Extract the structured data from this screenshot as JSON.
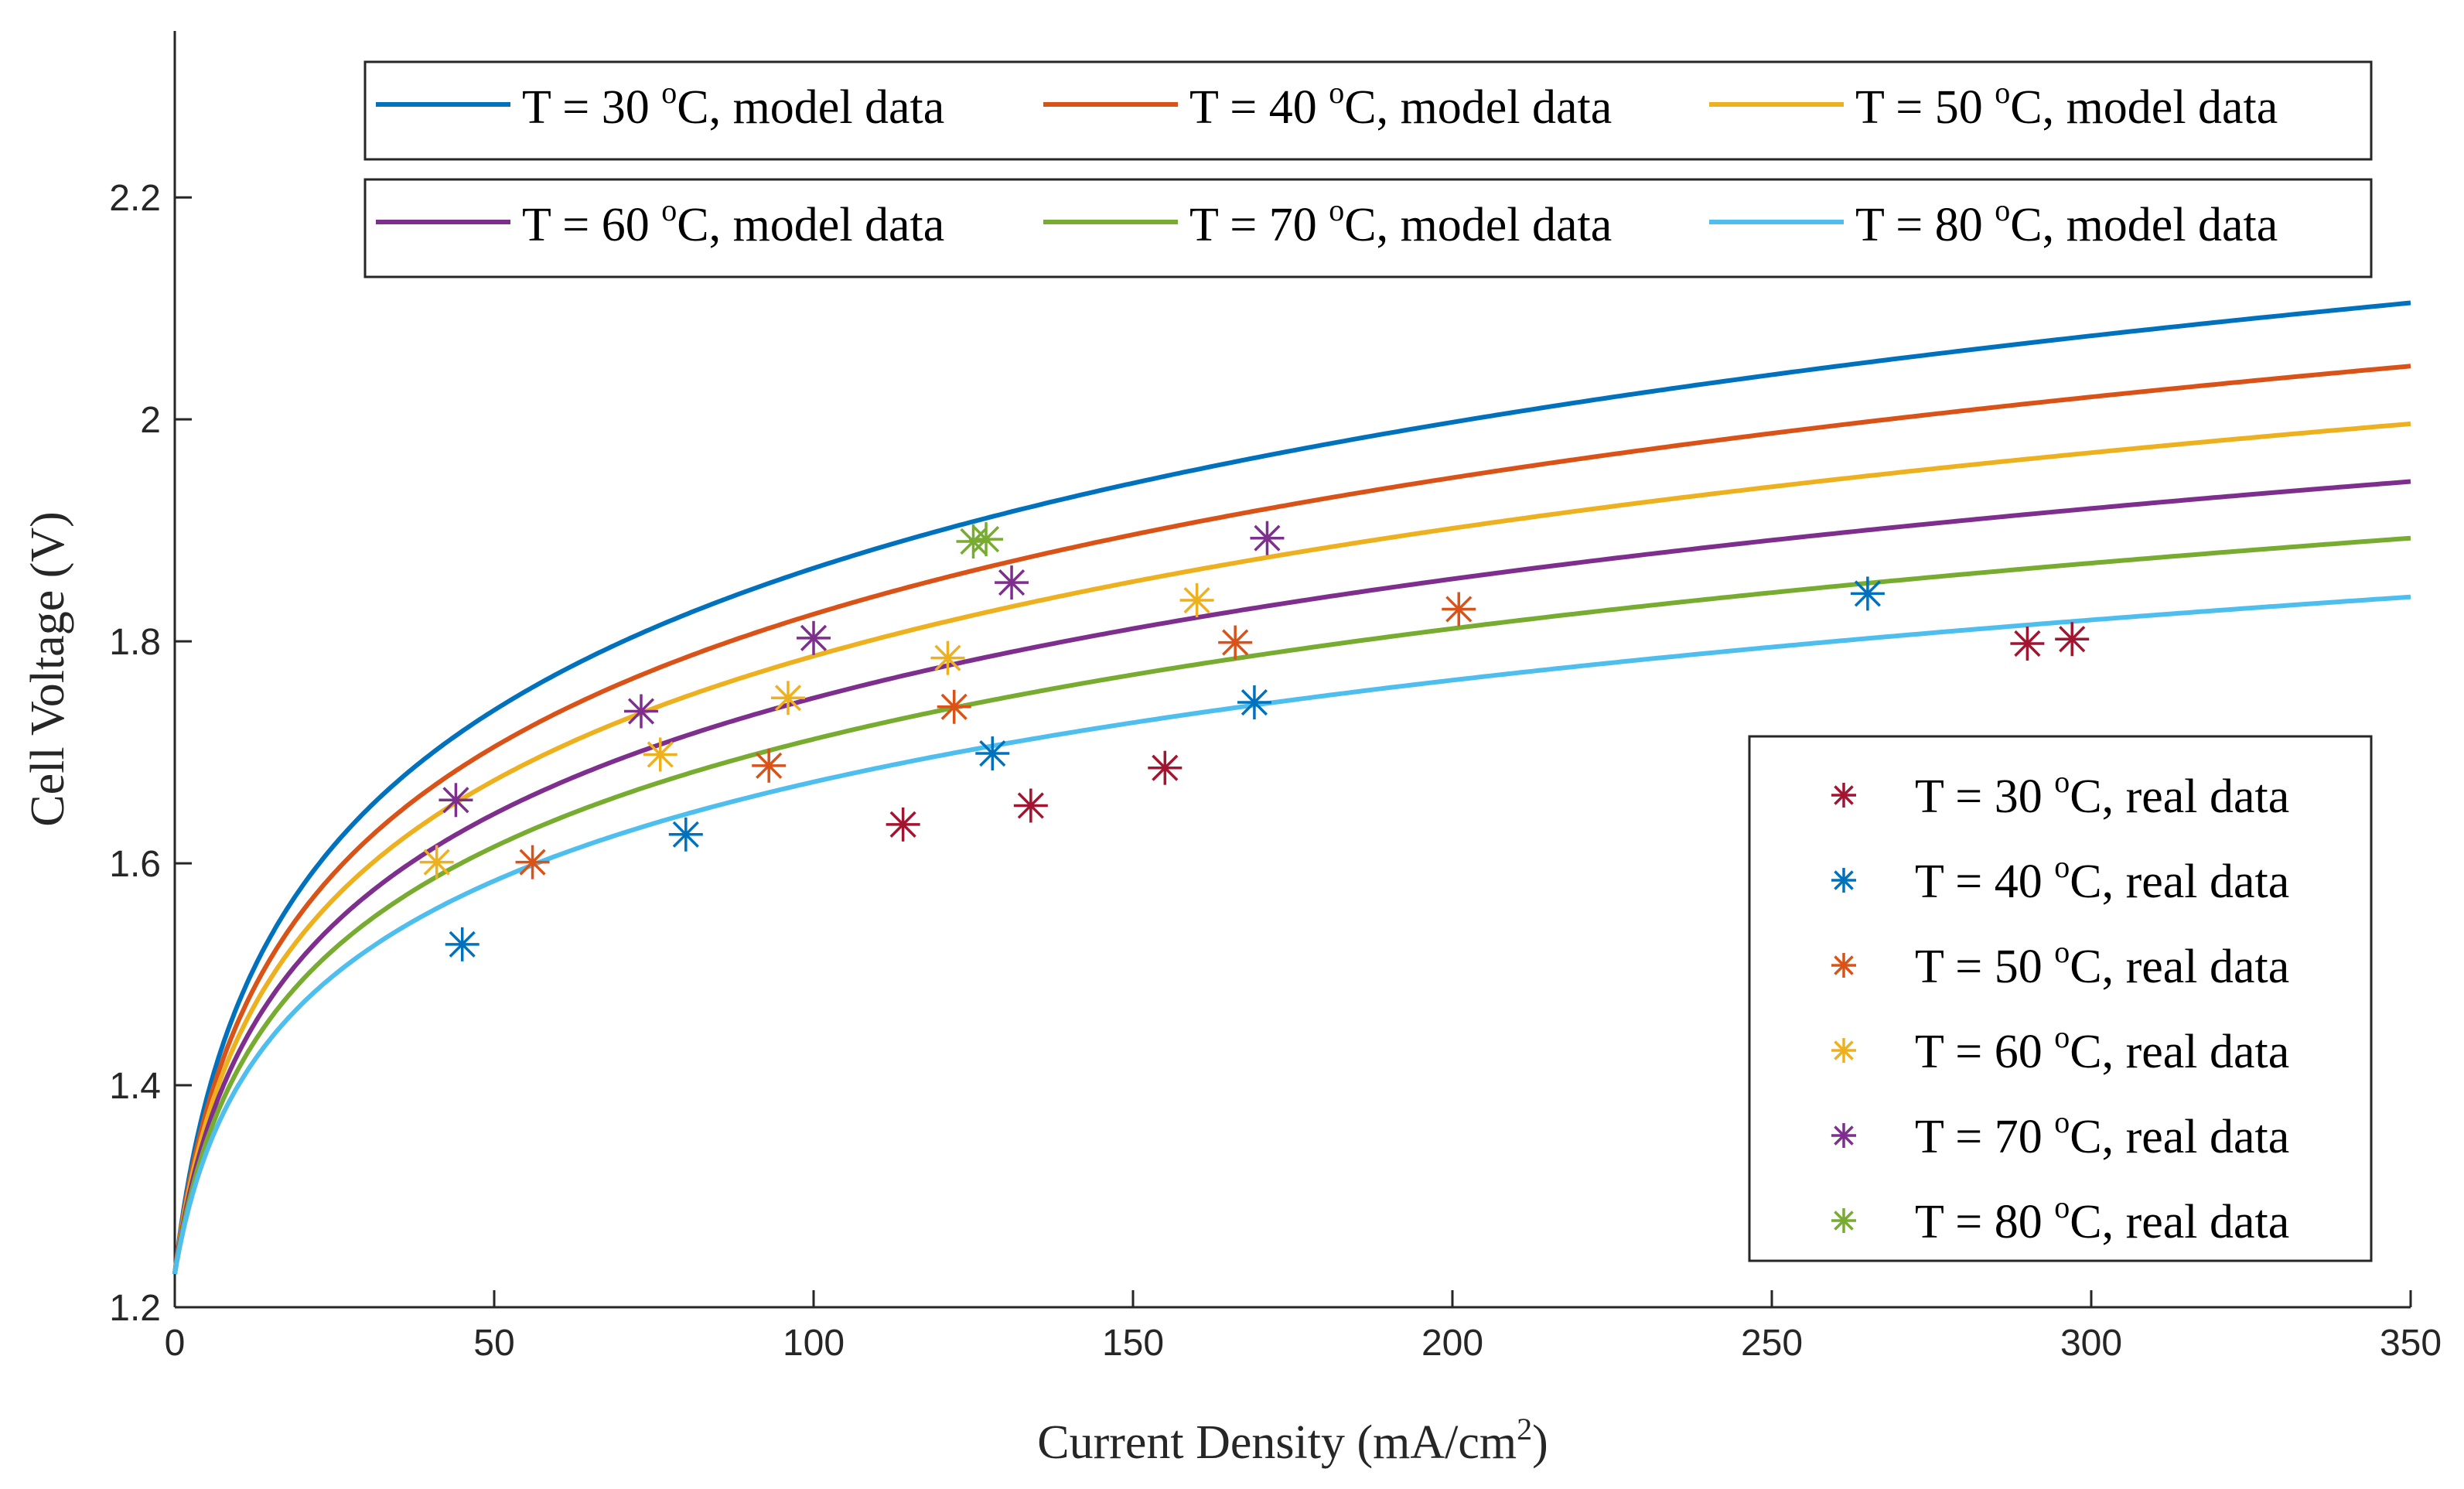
{
  "chart_data": {
    "type": "line",
    "title": "",
    "xlabel": "Current Density (mA/cm",
    "xlabel_sup": "2",
    "xlabel_tail": ")",
    "ylabel": "Cell Voltage (V)",
    "xlim": [
      0,
      350
    ],
    "ylim": [
      1.2,
      2.35
    ],
    "xticks": [
      0,
      50,
      100,
      150,
      200,
      250,
      300,
      350
    ],
    "xtick_labels": [
      "0",
      "50",
      "100",
      "150",
      "200",
      "250",
      "300",
      "350"
    ],
    "yticks": [
      1.2,
      1.4,
      1.6,
      1.8,
      2.0,
      2.2
    ],
    "ytick_labels": [
      "1.2",
      "1.4",
      "1.6",
      "1.8",
      "2",
      "2.2"
    ],
    "grid": false,
    "model_series": [
      {
        "name": "T = 30 oC, model data",
        "label_pre": "T = 30 ",
        "label_sup": "o",
        "label_post": "C, model data",
        "color": "#0072BD",
        "v0": 1.23,
        "v350": 2.105
      },
      {
        "name": "T = 40 oC, model data",
        "label_pre": "T = 40 ",
        "label_sup": "o",
        "label_post": "C, model data",
        "color": "#D95319",
        "v0": 1.23,
        "v350": 2.048
      },
      {
        "name": "T = 50 oC, model data",
        "label_pre": "T = 50 ",
        "label_sup": "o",
        "label_post": "C, model data",
        "color": "#EDB120",
        "v0": 1.23,
        "v350": 1.996
      },
      {
        "name": "T = 60 oC, model data",
        "label_pre": "T = 60 ",
        "label_sup": "o",
        "label_post": "C, model data",
        "color": "#7E2F8E",
        "v0": 1.23,
        "v350": 1.944
      },
      {
        "name": "T = 70 oC, model data",
        "label_pre": "T = 70 ",
        "label_sup": "o",
        "label_post": "C, model data",
        "color": "#77AC30",
        "v0": 1.23,
        "v350": 1.893
      },
      {
        "name": "T = 80 oC, model data",
        "label_pre": "T = 80 ",
        "label_sup": "o",
        "label_post": "C, model data",
        "color": "#4DBEEE",
        "v0": 1.23,
        "v350": 1.84
      }
    ],
    "real_series": [
      {
        "name": "T = 30 oC, real data",
        "label_pre": "T = 30 ",
        "label_sup": "o",
        "label_post": "C, real data",
        "color": "#A2142F",
        "points": [
          [
            114,
            1.635
          ],
          [
            134,
            1.652
          ],
          [
            155,
            1.686
          ],
          [
            290,
            1.798
          ],
          [
            297,
            1.802
          ]
        ]
      },
      {
        "name": "T = 40 oC, real data",
        "label_pre": "T = 40 ",
        "label_sup": "o",
        "label_post": "C, real data",
        "color": "#0072BD",
        "points": [
          [
            45,
            1.527
          ],
          [
            80,
            1.626
          ],
          [
            128,
            1.699
          ],
          [
            169,
            1.745
          ],
          [
            265,
            1.843
          ]
        ]
      },
      {
        "name": "T = 50 oC, real data",
        "label_pre": "T = 50 ",
        "label_sup": "o",
        "label_post": "C, real data",
        "color": "#D95319",
        "points": [
          [
            56,
            1.601
          ],
          [
            93,
            1.688
          ],
          [
            122,
            1.741
          ],
          [
            166,
            1.799
          ],
          [
            201,
            1.829
          ]
        ]
      },
      {
        "name": "T = 60 oC, real data",
        "label_pre": "T = 60 ",
        "label_sup": "o",
        "label_post": "C, real data",
        "color": "#EDB120",
        "points": [
          [
            41,
            1.601
          ],
          [
            76,
            1.698
          ],
          [
            96,
            1.749
          ],
          [
            121,
            1.785
          ],
          [
            160,
            1.837
          ]
        ]
      },
      {
        "name": "T = 70 oC, real data",
        "label_pre": "T = 70 ",
        "label_sup": "o",
        "label_post": "C, real data",
        "color": "#7E2F8E",
        "points": [
          [
            44,
            1.657
          ],
          [
            73,
            1.737
          ],
          [
            100,
            1.803
          ],
          [
            131,
            1.853
          ],
          [
            171,
            1.893
          ]
        ]
      },
      {
        "name": "T = 80 oC, real data",
        "label_pre": "T = 80 ",
        "label_sup": "o",
        "label_post": "C, real data",
        "color": "#77AC30",
        "points": [
          [
            125,
            1.89
          ],
          [
            127,
            1.892
          ]
        ]
      }
    ]
  }
}
